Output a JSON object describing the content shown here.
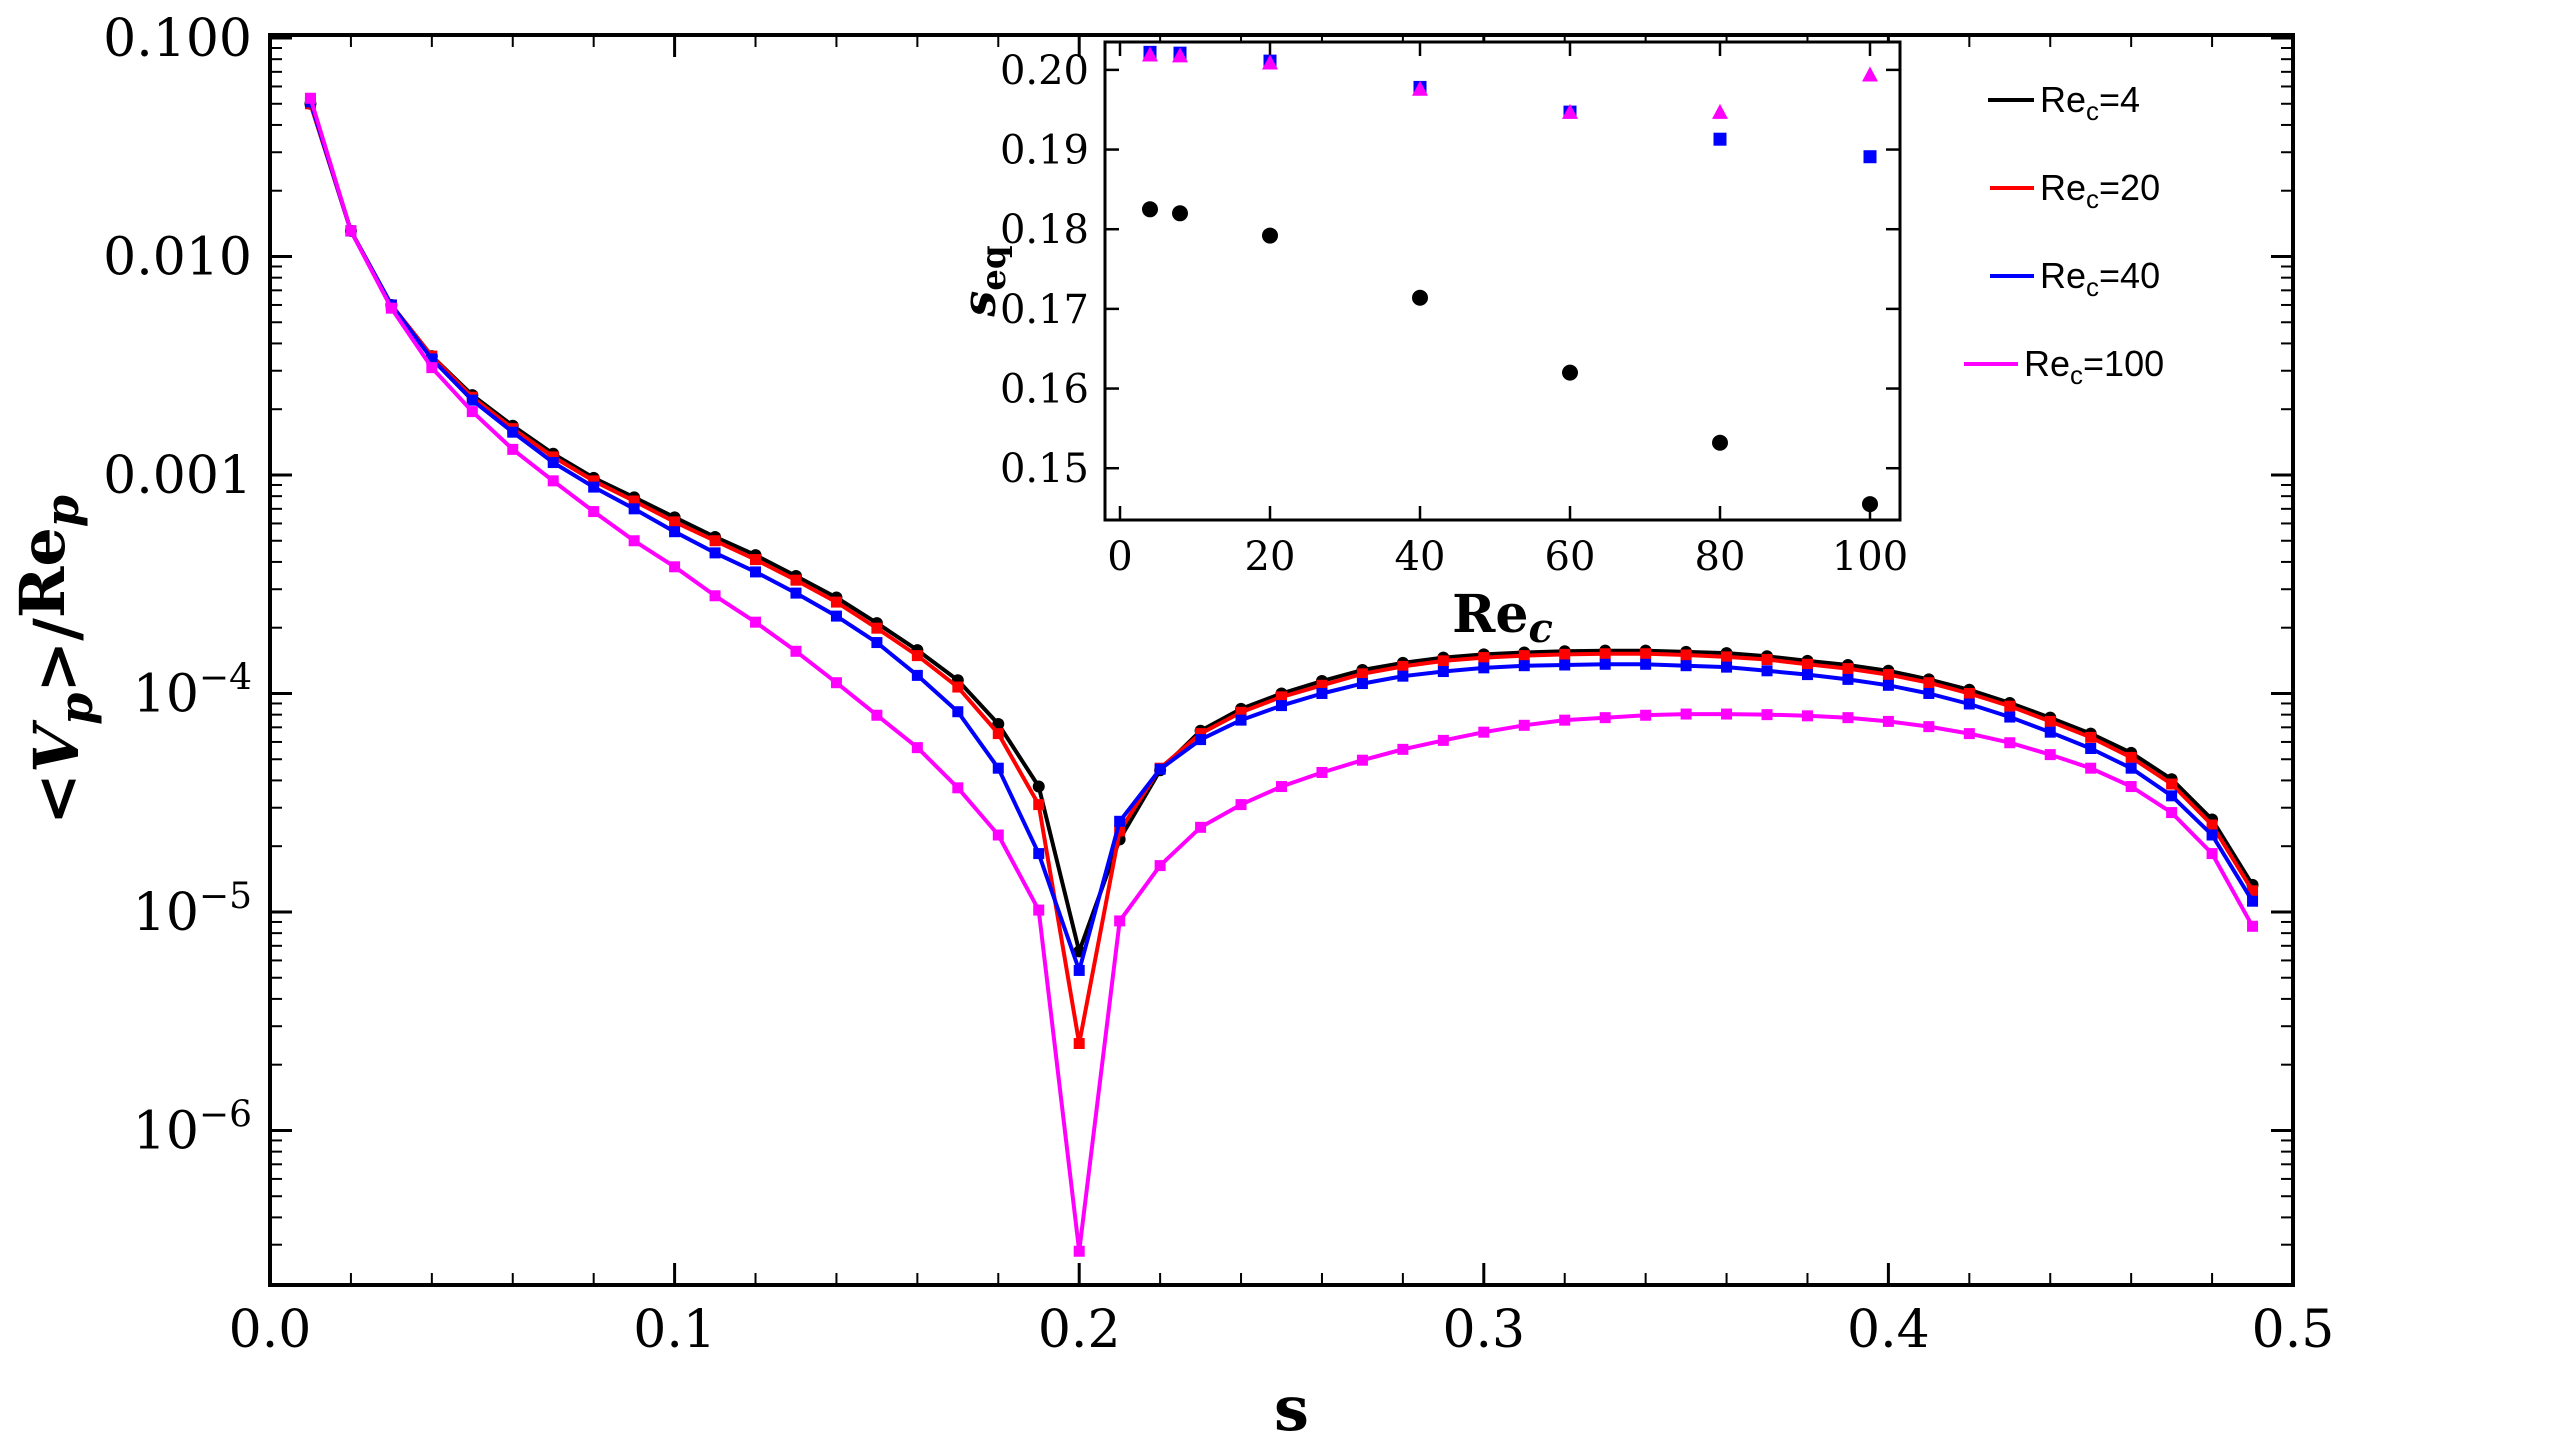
{
  "chart_data": {
    "type": "line",
    "scale": "log-y",
    "xlabel": "s",
    "ylabel": "<V_p>/Re_p",
    "xlim": [
      0.0,
      0.5
    ],
    "ylim": [
      2.5e-07,
      0.1
    ],
    "xticks": [
      "0.0",
      "0.1",
      "0.2",
      "0.3",
      "0.4",
      "0.5"
    ],
    "yticks": [
      {
        "value": 0.1,
        "base": "0.100",
        "exp": ""
      },
      {
        "value": 0.01,
        "base": "0.010",
        "exp": ""
      },
      {
        "value": 0.001,
        "base": "0.001",
        "exp": ""
      },
      {
        "value": 0.0001,
        "base": "10",
        "exp": "−4"
      },
      {
        "value": 1e-05,
        "base": "10",
        "exp": "−5"
      },
      {
        "value": 1e-06,
        "base": "10",
        "exp": "−6"
      }
    ],
    "x": [
      0.01,
      0.02,
      0.03,
      0.04,
      0.05,
      0.06,
      0.07,
      0.08,
      0.09,
      0.1,
      0.11,
      0.12,
      0.13,
      0.14,
      0.15,
      0.16,
      0.17,
      0.18,
      0.19,
      0.2,
      0.21,
      0.22,
      0.23,
      0.24,
      0.25,
      0.26,
      0.27,
      0.28,
      0.29,
      0.3,
      0.31,
      0.32,
      0.33,
      0.34,
      0.35,
      0.36,
      0.37,
      0.38,
      0.39,
      0.4,
      0.41,
      0.42,
      0.43,
      0.44,
      0.45,
      0.46,
      0.47,
      0.48,
      0.49
    ],
    "series": [
      {
        "name": "Re_c=4",
        "label_base": "Re",
        "label_sub": "c",
        "label_rest": "=4",
        "color": "#000000",
        "values": [
          0.05,
          0.0131,
          0.006,
          0.0035,
          0.00232,
          0.00168,
          0.00125,
          0.00097,
          0.00079,
          0.00064,
          0.00052,
          0.00043,
          0.000345,
          0.000275,
          0.00021,
          0.000158,
          0.000115,
          7.25e-05,
          3.75e-05,
          6.6e-06,
          2.15e-05,
          4.45e-05,
          6.75e-05,
          8.5e-05,
          0.0001,
          0.000114,
          0.000128,
          0.000138,
          0.000146,
          0.000151,
          0.000154,
          0.000156,
          0.000157,
          0.000157,
          0.000155,
          0.000153,
          0.000148,
          0.000141,
          0.000135,
          0.000127,
          0.000116,
          0.000104,
          9.05e-05,
          7.75e-05,
          6.55e-05,
          5.35e-05,
          4.05e-05,
          2.65e-05,
          1.33e-05
        ]
      },
      {
        "name": "Re_c=20",
        "label_base": "Re",
        "label_sub": "c",
        "label_rest": "=20",
        "color": "#ff0000",
        "values": [
          0.05,
          0.0131,
          0.006,
          0.0035,
          0.00227,
          0.00163,
          0.00121,
          0.00094,
          0.00076,
          0.00061,
          0.0005,
          0.00041,
          0.00033,
          0.000262,
          0.000199,
          0.000149,
          0.000107,
          6.55e-05,
          3.1e-05,
          2.5e-06,
          2.35e-05,
          4.55e-05,
          6.55e-05,
          8.2e-05,
          9.65e-05,
          0.000109,
          0.000123,
          0.000133,
          0.000141,
          0.000146,
          0.000149,
          0.000151,
          0.000152,
          0.000152,
          0.00015,
          0.000147,
          0.000143,
          0.000136,
          0.00013,
          0.000122,
          0.000112,
          0.0001,
          8.75e-05,
          7.45e-05,
          6.3e-05,
          5.1e-05,
          3.85e-05,
          2.5e-05,
          1.25e-05
        ]
      },
      {
        "name": "Re_c=40",
        "label_base": "Re",
        "label_sub": "c",
        "label_rest": "=40",
        "color": "#0000ff",
        "values": [
          0.051,
          0.0131,
          0.006,
          0.0034,
          0.0022,
          0.00157,
          0.00114,
          0.00088,
          0.0007,
          0.00055,
          0.00044,
          0.00036,
          0.000288,
          0.000226,
          0.000171,
          0.000121,
          8.25e-05,
          4.55e-05,
          1.85e-05,
          5.4e-06,
          2.6e-05,
          4.5e-05,
          6.15e-05,
          7.55e-05,
          8.8e-05,
          0.0001,
          0.000111,
          0.00012,
          0.000126,
          0.000131,
          0.000134,
          0.000135,
          0.000136,
          0.000136,
          0.000134,
          0.000132,
          0.000127,
          0.000122,
          0.000116,
          0.000109,
          0.0001,
          8.95e-05,
          7.8e-05,
          6.65e-05,
          5.6e-05,
          4.55e-05,
          3.4e-05,
          2.25e-05,
          1.12e-05
        ]
      },
      {
        "name": "Re_c=100",
        "label_base": "Re",
        "label_sub": "c",
        "label_rest": "=100",
        "color": "#ff00ff",
        "values": [
          0.053,
          0.0131,
          0.0058,
          0.0031,
          0.00195,
          0.00131,
          0.00094,
          0.00068,
          0.0005,
          0.00038,
          0.00028,
          0.000212,
          0.000156,
          0.000112,
          7.95e-05,
          5.65e-05,
          3.7e-05,
          2.25e-05,
          1.02e-05,
          2.8e-07,
          9.1e-06,
          1.63e-05,
          2.44e-05,
          3.1e-05,
          3.75e-05,
          4.35e-05,
          4.95e-05,
          5.55e-05,
          6.1e-05,
          6.65e-05,
          7.15e-05,
          7.55e-05,
          7.75e-05,
          7.95e-05,
          8.05e-05,
          8.05e-05,
          8e-05,
          7.9e-05,
          7.75e-05,
          7.45e-05,
          7.05e-05,
          6.55e-05,
          5.95e-05,
          5.25e-05,
          4.55e-05,
          3.75e-05,
          2.85e-05,
          1.85e-05,
          8.6e-06
        ]
      }
    ],
    "inset": {
      "type": "scatter",
      "xlabel": "Re_c",
      "ylabel": "s_eq",
      "xlim": [
        -2,
        104
      ],
      "ylim": [
        0.1435,
        0.2035
      ],
      "xticks": [
        "0",
        "20",
        "40",
        "60",
        "80",
        "100"
      ],
      "yticks": [
        "0.15",
        "0.16",
        "0.17",
        "0.18",
        "0.19",
        "0.20"
      ],
      "series": [
        {
          "color": "#000000",
          "marker": "circle",
          "x": [
            4,
            8,
            20,
            40,
            60,
            80,
            100
          ],
          "y": [
            0.1825,
            0.182,
            0.1792,
            0.1714,
            0.162,
            0.1532,
            0.1455
          ]
        },
        {
          "color": "#0000ff",
          "marker": "square",
          "x": [
            4,
            8,
            20,
            40,
            60,
            80,
            100
          ],
          "y": [
            0.2022,
            0.2021,
            0.2011,
            0.1978,
            0.1947,
            0.1913,
            0.1891
          ]
        },
        {
          "color": "#ff00ff",
          "marker": "triangle",
          "x": [
            4,
            8,
            20,
            40,
            60,
            80,
            100
          ],
          "y": [
            0.2018,
            0.2017,
            0.2008,
            0.1975,
            0.1946,
            0.1946,
            0.1993
          ]
        }
      ]
    }
  }
}
